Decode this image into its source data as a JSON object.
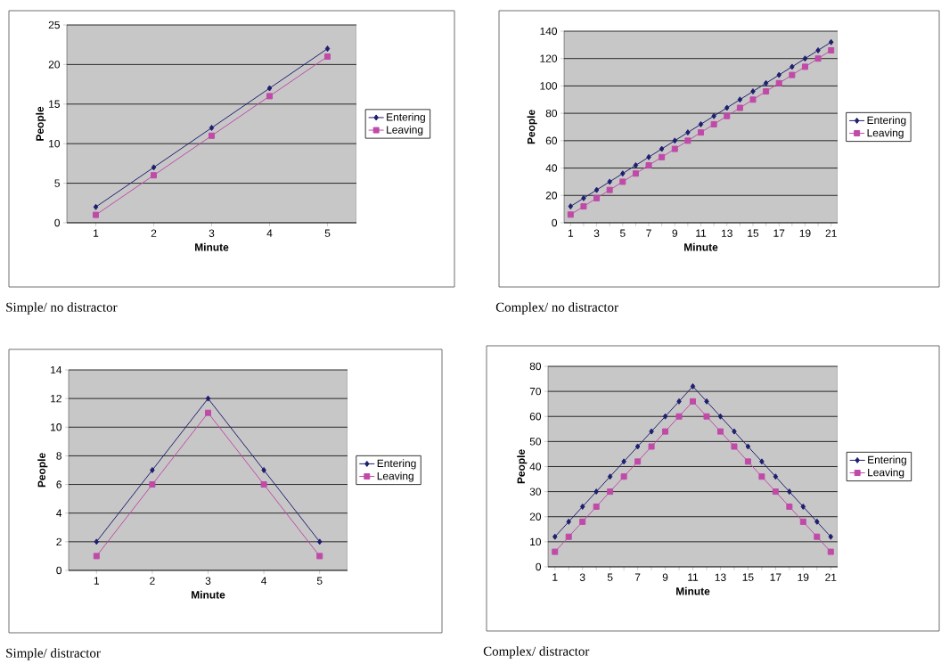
{
  "chart_data": [
    {
      "type": "line",
      "categories": [
        "1",
        "2",
        "3",
        "4",
        "5"
      ],
      "xlabel": "Minute",
      "ylabel": "People",
      "ylim": [
        0,
        25
      ],
      "yticks": [
        0,
        5,
        10,
        15,
        20,
        25
      ],
      "grid": "y",
      "legend": "right",
      "annotations": [
        "Simple/ no distractor"
      ],
      "series": [
        {
          "name": "Entering",
          "color": "#1f1f70",
          "marker": "diamond",
          "values": [
            2,
            7,
            12,
            17,
            22
          ]
        },
        {
          "name": "Leaving",
          "color": "#c04aa8",
          "marker": "square",
          "values": [
            1,
            6,
            11,
            16,
            21
          ]
        }
      ]
    },
    {
      "type": "line",
      "categories": [
        "1",
        null,
        "3",
        null,
        "5",
        null,
        "7",
        null,
        "9",
        null,
        "11",
        null,
        "13",
        null,
        "15",
        null,
        "17",
        null,
        "19",
        null,
        "21"
      ],
      "xlabel": "Minute",
      "ylabel": "People",
      "ylim": [
        0,
        140
      ],
      "yticks": [
        0,
        20,
        40,
        60,
        80,
        100,
        120,
        140
      ],
      "grid": "y",
      "legend": "right",
      "annotations": [
        "Complex/ no distractor"
      ],
      "series": [
        {
          "name": "Entering",
          "color": "#1f1f70",
          "marker": "diamond",
          "values": [
            12,
            18,
            24,
            30,
            36,
            42,
            48,
            54,
            60,
            66,
            72,
            78,
            84,
            90,
            96,
            102,
            108,
            114,
            120,
            126,
            132
          ]
        },
        {
          "name": "Leaving",
          "color": "#c04aa8",
          "marker": "square",
          "values": [
            6,
            12,
            18,
            24,
            30,
            36,
            42,
            48,
            54,
            60,
            66,
            72,
            78,
            84,
            90,
            96,
            102,
            108,
            114,
            120,
            126
          ]
        }
      ]
    },
    {
      "type": "line",
      "categories": [
        "1",
        "2",
        "3",
        "4",
        "5"
      ],
      "xlabel": "Minute",
      "ylabel": "People",
      "ylim": [
        0,
        14
      ],
      "yticks": [
        0,
        2,
        4,
        6,
        8,
        10,
        12,
        14
      ],
      "grid": "y",
      "legend": "right",
      "annotations": [
        "Simple/ distractor"
      ],
      "series": [
        {
          "name": "Entering",
          "color": "#1f1f70",
          "marker": "diamond",
          "values": [
            2,
            7,
            12,
            7,
            2
          ]
        },
        {
          "name": "Leaving",
          "color": "#c04aa8",
          "marker": "square",
          "values": [
            1,
            6,
            11,
            6,
            1
          ]
        }
      ]
    },
    {
      "type": "line",
      "categories": [
        "1",
        null,
        "3",
        null,
        "5",
        null,
        "7",
        null,
        "9",
        null,
        "11",
        null,
        "13",
        null,
        "15",
        null,
        "17",
        null,
        "19",
        null,
        "21"
      ],
      "xlabel": "Minute",
      "ylabel": "People",
      "ylim": [
        0,
        80
      ],
      "yticks": [
        0,
        10,
        20,
        30,
        40,
        50,
        60,
        70,
        80
      ],
      "grid": "y",
      "legend": "right",
      "annotations": [
        "Complex/ distractor"
      ],
      "series": [
        {
          "name": "Entering",
          "color": "#1f1f70",
          "marker": "diamond",
          "values": [
            12,
            18,
            24,
            30,
            36,
            42,
            48,
            54,
            60,
            66,
            72,
            66,
            60,
            54,
            48,
            42,
            36,
            30,
            24,
            18,
            12
          ]
        },
        {
          "name": "Leaving",
          "color": "#c04aa8",
          "marker": "square",
          "values": [
            6,
            12,
            18,
            24,
            30,
            36,
            42,
            48,
            54,
            60,
            66,
            60,
            54,
            48,
            42,
            36,
            30,
            24,
            18,
            12,
            6
          ]
        }
      ]
    }
  ]
}
